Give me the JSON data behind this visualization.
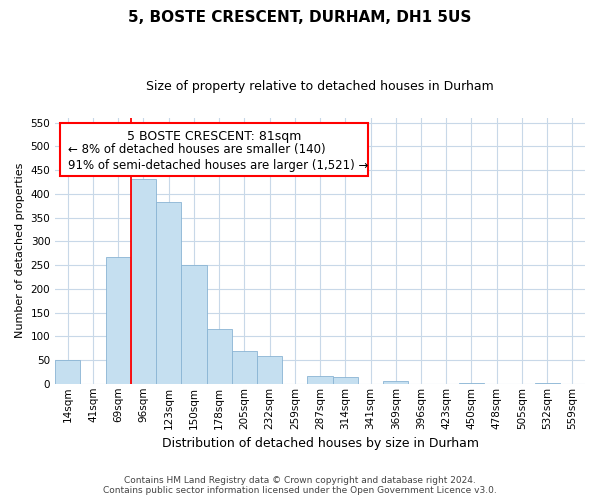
{
  "title": "5, BOSTE CRESCENT, DURHAM, DH1 5US",
  "subtitle": "Size of property relative to detached houses in Durham",
  "xlabel": "Distribution of detached houses by size in Durham",
  "ylabel": "Number of detached properties",
  "categories": [
    "14sqm",
    "41sqm",
    "69sqm",
    "96sqm",
    "123sqm",
    "150sqm",
    "178sqm",
    "205sqm",
    "232sqm",
    "259sqm",
    "287sqm",
    "314sqm",
    "341sqm",
    "369sqm",
    "396sqm",
    "423sqm",
    "450sqm",
    "478sqm",
    "505sqm",
    "532sqm",
    "559sqm"
  ],
  "values": [
    50,
    0,
    267,
    432,
    383,
    251,
    116,
    70,
    58,
    0,
    17,
    15,
    0,
    5,
    0,
    0,
    2,
    0,
    0,
    1,
    0
  ],
  "bar_color": "#c5dff0",
  "bar_edge_color": "#8ab4d4",
  "red_line_x": 2.5,
  "ylim": [
    0,
    560
  ],
  "yticks": [
    0,
    50,
    100,
    150,
    200,
    250,
    300,
    350,
    400,
    450,
    500,
    550
  ],
  "annotation_title": "5 BOSTE CRESCENT: 81sqm",
  "annotation_line1": "← 8% of detached houses are smaller (140)",
  "annotation_line2": "91% of semi-detached houses are larger (1,521) →",
  "footer_line1": "Contains HM Land Registry data © Crown copyright and database right 2024.",
  "footer_line2": "Contains public sector information licensed under the Open Government Licence v3.0.",
  "background_color": "#ffffff",
  "grid_color": "#c8d8e8",
  "title_fontsize": 11,
  "subtitle_fontsize": 9,
  "ylabel_fontsize": 8,
  "xlabel_fontsize": 9,
  "tick_fontsize": 7.5,
  "ann_title_fontsize": 9,
  "ann_text_fontsize": 8.5,
  "footer_fontsize": 6.5
}
